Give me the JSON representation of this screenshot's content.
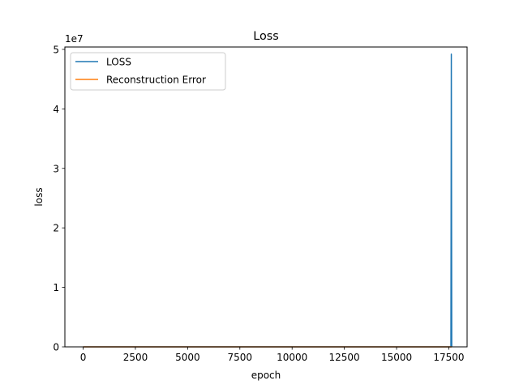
{
  "chart_data": {
    "type": "line",
    "title": "Loss",
    "xlabel": "epoch",
    "ylabel": "loss",
    "y_offset_label": "1e7",
    "xlim": [
      -875,
      18375
    ],
    "ylim": [
      0,
      5.04
    ],
    "x_ticks": [
      0,
      2500,
      5000,
      7500,
      10000,
      12500,
      15000,
      17500
    ],
    "x_tick_labels": [
      "0",
      "2500",
      "5000",
      "7500",
      "10000",
      "12500",
      "15000",
      "17500"
    ],
    "y_ticks": [
      0,
      1,
      2,
      3,
      4,
      5
    ],
    "y_tick_labels": [
      "0",
      "1",
      "2",
      "3",
      "4",
      "5"
    ],
    "y_scale_note": "values in units of 1e7",
    "legend_position": "upper left",
    "grid": false,
    "series": [
      {
        "name": "LOSS",
        "color": "#1f77b4",
        "x": [
          0,
          17600,
          17620,
          17640
        ],
        "y": [
          0,
          0,
          4.92,
          0
        ]
      },
      {
        "name": "Reconstruction Error",
        "color": "#ff7f0e",
        "x": [
          0,
          17640
        ],
        "y": [
          0,
          0
        ]
      }
    ]
  }
}
